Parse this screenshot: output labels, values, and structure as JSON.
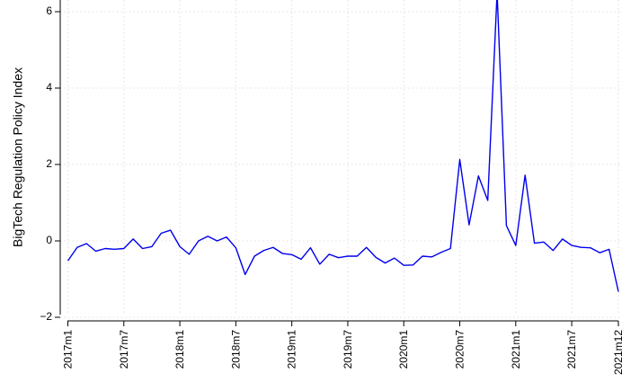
{
  "chart_data": {
    "type": "line",
    "title": "",
    "xlabel": "",
    "ylabel": "BigTech Regulation Policy Index",
    "ylim": [
      -2.2,
      6.3
    ],
    "y_ticks": [
      -2,
      0,
      2,
      4,
      6
    ],
    "y_tick_labels": [
      "−2",
      "0",
      "2",
      "4",
      "6"
    ],
    "x_ticks": [
      "2017m1",
      "2017m7",
      "2018m1",
      "2018m7",
      "2019m1",
      "2019m7",
      "2020m1",
      "2020m7",
      "2021m1",
      "2021m7",
      "2021m12"
    ],
    "grid": true,
    "legend": "none",
    "line_color": "#0000ee",
    "series": [
      {
        "x": [
          "2017m1",
          "2017m2",
          "2017m3",
          "2017m4",
          "2017m5",
          "2017m6",
          "2017m7",
          "2017m8",
          "2017m9",
          "2017m10",
          "2017m11",
          "2017m12",
          "2018m1",
          "2018m2",
          "2018m3",
          "2018m4",
          "2018m5",
          "2018m6",
          "2018m7",
          "2018m8",
          "2018m9",
          "2018m10",
          "2018m11",
          "2018m12",
          "2019m1",
          "2019m2",
          "2019m3",
          "2019m4",
          "2019m5",
          "2019m6",
          "2019m7",
          "2019m8",
          "2019m9",
          "2019m10",
          "2019m11",
          "2019m12",
          "2020m1",
          "2020m2",
          "2020m3",
          "2020m4",
          "2020m5",
          "2020m6",
          "2020m7",
          "2020m8",
          "2020m9",
          "2020m10",
          "2020m11",
          "2020m12",
          "2021m1",
          "2021m2",
          "2021m3",
          "2021m4",
          "2021m5",
          "2021m6",
          "2021m7",
          "2021m8",
          "2021m9",
          "2021m10",
          "2021m11",
          "2021m12"
        ],
        "values": [
          -0.52,
          -0.17,
          -0.07,
          -0.27,
          -0.2,
          -0.22,
          -0.2,
          0.05,
          -0.2,
          -0.15,
          0.2,
          0.28,
          -0.15,
          -0.35,
          0.0,
          0.12,
          0.0,
          0.1,
          -0.18,
          -0.88,
          -0.4,
          -0.25,
          -0.17,
          -0.33,
          -0.36,
          -0.48,
          -0.18,
          -0.61,
          -0.35,
          -0.44,
          -0.4,
          -0.4,
          -0.17,
          -0.43,
          -0.58,
          -0.45,
          -0.64,
          -0.63,
          -0.4,
          -0.42,
          -0.3,
          -0.2,
          2.13,
          0.42,
          1.7,
          1.06,
          6.5,
          0.4,
          -0.12,
          1.72,
          -0.06,
          -0.03,
          -0.25,
          0.05,
          -0.12,
          -0.17,
          -0.18,
          -0.31,
          -0.22,
          -1.33
        ]
      }
    ]
  }
}
